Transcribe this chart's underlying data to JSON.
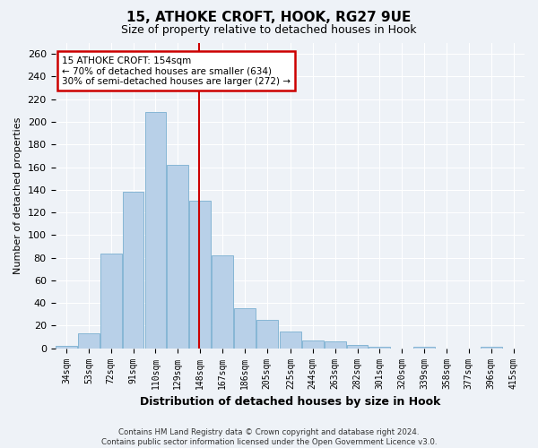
{
  "title": "15, ATHOKE CROFT, HOOK, RG27 9UE",
  "subtitle": "Size of property relative to detached houses in Hook",
  "xlabel": "Distribution of detached houses by size in Hook",
  "ylabel": "Number of detached properties",
  "footer_line1": "Contains HM Land Registry data © Crown copyright and database right 2024.",
  "footer_line2": "Contains public sector information licensed under the Open Government Licence v3.0.",
  "annotation_title": "15 ATHOKE CROFT: 154sqm",
  "annotation_line2": "← 70% of detached houses are smaller (634)",
  "annotation_line3": "30% of semi-detached houses are larger (272) →",
  "bar_color": "#b8d0e8",
  "bar_edge_color": "#7aafd0",
  "vline_color": "#cc0000",
  "vline_x": 157,
  "annotation_box_color": "#cc0000",
  "categories": [
    "34sqm",
    "53sqm",
    "72sqm",
    "91sqm",
    "110sqm",
    "129sqm",
    "148sqm",
    "167sqm",
    "186sqm",
    "205sqm",
    "225sqm",
    "244sqm",
    "263sqm",
    "282sqm",
    "301sqm",
    "320sqm",
    "339sqm",
    "358sqm",
    "377sqm",
    "396sqm",
    "415sqm"
  ],
  "bin_edges": [
    34,
    53,
    72,
    91,
    110,
    129,
    148,
    167,
    186,
    205,
    225,
    244,
    263,
    282,
    301,
    320,
    339,
    358,
    377,
    396,
    415
  ],
  "values": [
    2,
    13,
    84,
    138,
    209,
    162,
    130,
    82,
    35,
    25,
    15,
    7,
    6,
    3,
    1,
    0,
    1,
    0,
    0,
    1,
    0
  ],
  "ylim": [
    0,
    270
  ],
  "yticks": [
    0,
    20,
    40,
    60,
    80,
    100,
    120,
    140,
    160,
    180,
    200,
    220,
    240,
    260
  ],
  "background_color": "#eef2f7",
  "grid_color": "#ffffff"
}
